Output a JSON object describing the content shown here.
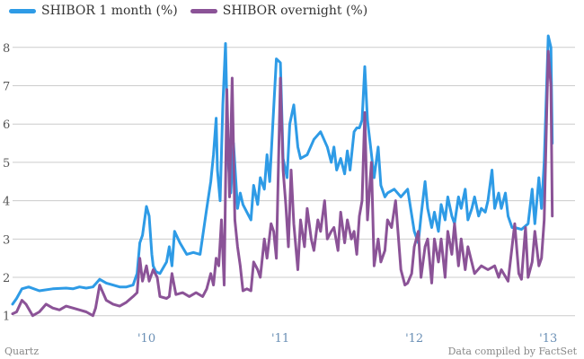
{
  "legend": {
    "series1_label": "SHIBOR 1 month (%)",
    "series2_label": "SHIBOR overnight (%)"
  },
  "footer": {
    "source_left": "Quartz",
    "source_right": "Data compiled by FactSet"
  },
  "colors": {
    "series1": "#2e9be6",
    "series2": "#8b5397",
    "grid": "#cccccc",
    "axis_text": "#555555",
    "year_text": "#6a8fb5"
  },
  "chart_data": {
    "type": "line",
    "title": "",
    "xlabel": "",
    "ylabel": "",
    "xlim": [
      2009.0,
      2013.2
    ],
    "ylim": [
      0.9,
      8.3
    ],
    "y_ticks": [
      1,
      2,
      3,
      4,
      5,
      6,
      7,
      8
    ],
    "x_ticks": [
      {
        "value": 2010,
        "label": "'10"
      },
      {
        "value": 2011,
        "label": "'11"
      },
      {
        "value": 2012,
        "label": "'12"
      },
      {
        "value": 2013,
        "label": "'13"
      }
    ],
    "series": [
      {
        "name": "SHIBOR 1 month (%)",
        "x": [
          2009.0,
          2009.03,
          2009.07,
          2009.12,
          2009.2,
          2009.3,
          2009.4,
          2009.45,
          2009.5,
          2009.55,
          2009.6,
          2009.65,
          2009.7,
          2009.8,
          2009.85,
          2009.9,
          2009.93,
          2009.95,
          2009.97,
          2010.0,
          2010.02,
          2010.04,
          2010.05,
          2010.07,
          2010.1,
          2010.15,
          2010.17,
          2010.19,
          2010.21,
          2010.25,
          2010.3,
          2010.35,
          2010.4,
          2010.45,
          2010.48,
          2010.5,
          2010.52,
          2010.53,
          2010.55,
          2010.57,
          2010.59,
          2010.61,
          2010.63,
          2010.65,
          2010.68,
          2010.7,
          2010.72,
          2010.75,
          2010.78,
          2010.8,
          2010.83,
          2010.85,
          2010.88,
          2010.9,
          2010.92,
          2010.95,
          2010.97,
          2011.0,
          2011.02,
          2011.05,
          2011.07,
          2011.1,
          2011.13,
          2011.15,
          2011.2,
          2011.25,
          2011.3,
          2011.35,
          2011.38,
          2011.4,
          2011.42,
          2011.45,
          2011.48,
          2011.5,
          2011.52,
          2011.55,
          2011.57,
          2011.59,
          2011.61,
          2011.63,
          2011.65,
          2011.67,
          2011.7,
          2011.73,
          2011.75,
          2011.78,
          2011.8,
          2011.85,
          2011.9,
          2011.95,
          2012.0,
          2012.03,
          2012.05,
          2012.08,
          2012.1,
          2012.13,
          2012.15,
          2012.18,
          2012.2,
          2012.23,
          2012.25,
          2012.28,
          2012.3,
          2012.33,
          2012.35,
          2012.38,
          2012.4,
          2012.43,
          2012.45,
          2012.48,
          2012.5,
          2012.53,
          2012.55,
          2012.58,
          2012.6,
          2012.63,
          2012.65,
          2012.68,
          2012.7,
          2012.73,
          2012.75,
          2012.8,
          2012.85,
          2012.88,
          2012.9,
          2012.93,
          2012.95,
          2012.97,
          2012.99,
          2013.0,
          2013.02,
          2013.03
        ],
        "values": [
          1.3,
          1.45,
          1.7,
          1.75,
          1.65,
          1.7,
          1.72,
          1.7,
          1.75,
          1.72,
          1.75,
          1.95,
          1.85,
          1.75,
          1.75,
          1.8,
          2.1,
          2.9,
          3.1,
          3.85,
          3.6,
          2.6,
          2.3,
          2.15,
          2.1,
          2.4,
          2.8,
          2.3,
          3.2,
          2.9,
          2.6,
          2.65,
          2.6,
          3.8,
          4.5,
          5.2,
          6.15,
          4.8,
          4.0,
          6.5,
          8.1,
          5.0,
          4.2,
          5.5,
          3.8,
          4.2,
          3.9,
          3.7,
          3.5,
          4.4,
          3.9,
          4.6,
          4.3,
          5.2,
          4.5,
          6.4,
          7.7,
          7.6,
          5.1,
          4.6,
          6.0,
          6.5,
          5.4,
          5.1,
          5.2,
          5.6,
          5.8,
          5.4,
          5.0,
          5.4,
          4.8,
          5.1,
          4.7,
          5.3,
          4.8,
          5.8,
          5.9,
          5.9,
          6.1,
          7.5,
          6.1,
          5.5,
          4.6,
          5.4,
          4.4,
          4.1,
          4.2,
          4.3,
          4.1,
          4.3,
          3.2,
          2.9,
          3.6,
          4.5,
          3.8,
          3.3,
          3.7,
          3.2,
          3.9,
          3.5,
          4.1,
          3.6,
          3.4,
          4.1,
          3.8,
          4.3,
          3.5,
          3.8,
          4.1,
          3.6,
          3.8,
          3.7,
          4.0,
          4.8,
          3.8,
          4.2,
          3.8,
          4.2,
          3.6,
          3.3,
          3.3,
          3.25,
          3.4,
          4.3,
          3.4,
          4.6,
          3.8,
          5.0,
          7.2,
          8.3,
          8.0,
          5.5
        ]
      },
      {
        "name": "SHIBOR overnight (%)",
        "x": [
          2009.0,
          2009.03,
          2009.07,
          2009.1,
          2009.15,
          2009.2,
          2009.25,
          2009.3,
          2009.35,
          2009.4,
          2009.45,
          2009.5,
          2009.55,
          2009.6,
          2009.62,
          2009.65,
          2009.7,
          2009.75,
          2009.8,
          2009.85,
          2009.9,
          2009.93,
          2009.95,
          2009.97,
          2010.0,
          2010.02,
          2010.05,
          2010.08,
          2010.1,
          2010.15,
          2010.17,
          2010.19,
          2010.22,
          2010.27,
          2010.32,
          2010.37,
          2010.42,
          2010.45,
          2010.48,
          2010.5,
          2010.52,
          2010.54,
          2010.56,
          2010.58,
          2010.6,
          2010.62,
          2010.64,
          2010.66,
          2010.68,
          2010.7,
          2010.72,
          2010.75,
          2010.78,
          2010.8,
          2010.83,
          2010.85,
          2010.88,
          2010.9,
          2010.93,
          2010.95,
          2010.97,
          2011.0,
          2011.02,
          2011.04,
          2011.06,
          2011.08,
          2011.1,
          2011.13,
          2011.15,
          2011.18,
          2011.2,
          2011.23,
          2011.25,
          2011.28,
          2011.3,
          2011.33,
          2011.35,
          2011.38,
          2011.4,
          2011.43,
          2011.45,
          2011.48,
          2011.5,
          2011.53,
          2011.55,
          2011.57,
          2011.59,
          2011.61,
          2011.63,
          2011.65,
          2011.68,
          2011.7,
          2011.73,
          2011.75,
          2011.78,
          2011.8,
          2011.83,
          2011.86,
          2011.9,
          2011.93,
          2011.95,
          2011.98,
          2012.0,
          2012.03,
          2012.05,
          2012.08,
          2012.1,
          2012.13,
          2012.15,
          2012.18,
          2012.2,
          2012.23,
          2012.25,
          2012.28,
          2012.3,
          2012.33,
          2012.35,
          2012.38,
          2012.4,
          2012.45,
          2012.5,
          2012.55,
          2012.6,
          2012.63,
          2012.65,
          2012.7,
          2012.75,
          2012.78,
          2012.8,
          2012.83,
          2012.85,
          2012.88,
          2012.9,
          2012.93,
          2012.95,
          2012.97,
          2012.99,
          2013.0,
          2013.02,
          2013.03
        ],
        "values": [
          1.05,
          1.1,
          1.4,
          1.3,
          1.0,
          1.1,
          1.3,
          1.2,
          1.15,
          1.25,
          1.2,
          1.15,
          1.1,
          1.0,
          1.2,
          1.8,
          1.4,
          1.3,
          1.25,
          1.35,
          1.5,
          1.6,
          2.5,
          1.9,
          2.3,
          1.9,
          2.2,
          2.0,
          1.5,
          1.45,
          1.5,
          2.1,
          1.55,
          1.6,
          1.5,
          1.6,
          1.5,
          1.7,
          2.1,
          1.8,
          2.5,
          2.3,
          3.5,
          1.8,
          6.9,
          4.1,
          7.2,
          3.5,
          2.8,
          2.3,
          1.65,
          1.7,
          1.65,
          2.4,
          2.2,
          2.0,
          3.0,
          2.5,
          3.4,
          3.2,
          2.5,
          7.2,
          4.8,
          3.9,
          2.8,
          4.8,
          3.4,
          2.2,
          3.5,
          2.8,
          3.8,
          3.0,
          2.7,
          3.5,
          3.2,
          4.0,
          3.0,
          3.2,
          3.3,
          2.7,
          3.7,
          2.9,
          3.5,
          3.0,
          3.2,
          2.6,
          3.6,
          4.0,
          6.3,
          3.5,
          5.0,
          2.3,
          3.0,
          2.4,
          2.7,
          3.5,
          3.3,
          4.0,
          2.2,
          1.8,
          1.85,
          2.1,
          2.8,
          3.2,
          2.0,
          2.8,
          3.0,
          1.85,
          3.0,
          2.4,
          3.0,
          2.0,
          3.2,
          2.6,
          3.4,
          2.3,
          3.0,
          2.2,
          2.8,
          2.1,
          2.3,
          2.2,
          2.3,
          2.0,
          2.2,
          1.9,
          3.4,
          2.1,
          1.95,
          3.3,
          2.0,
          2.4,
          3.2,
          2.3,
          2.5,
          3.5,
          6.5,
          7.9,
          7.0,
          3.6
        ]
      }
    ]
  }
}
